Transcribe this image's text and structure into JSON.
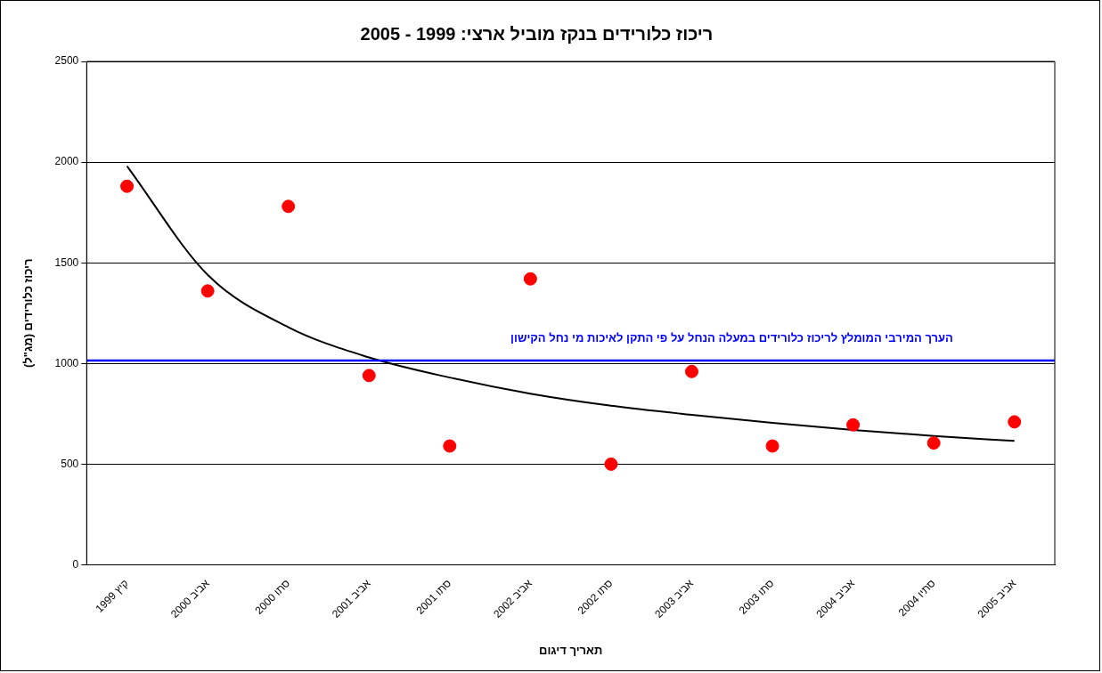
{
  "chart_data": {
    "type": "scatter",
    "title": "ריכוז כלורידים בנקז מוביל ארצי: 1999 - 2005",
    "xlabel": "תאריך דיגום",
    "ylabel": "ריכוז כלורידים (מג\"ל)",
    "categories": [
      "קיץ 1999",
      "אביב 2000",
      "סתו 2000",
      "אביב 2001",
      "סתו 2001",
      "אביב 2002",
      "סתו 2002",
      "אביב 2003",
      "סתו 2003",
      "אביב 2004",
      "סתיו 2004",
      "אביב 2005"
    ],
    "series": [
      {
        "color": "#ff0000",
        "marker": "circle",
        "values": [
          1880,
          1360,
          1780,
          940,
          590,
          1420,
          500,
          960,
          590,
          695,
          605,
          710
        ]
      },
      {
        "type": "line",
        "color": "#000000",
        "marker": "none",
        "line_style": "solid",
        "values": [
          1980,
          1440,
          1180,
          1030,
          930,
          850,
          790,
          745,
          705,
          670,
          640,
          615
        ]
      }
    ],
    "ylim": [
      0,
      2500
    ],
    "yticks": [
      0,
      500,
      1000,
      1500,
      2000,
      2500
    ],
    "grid": "y",
    "legend": false,
    "ref_lines": [
      {
        "axis": "y",
        "value": 1015,
        "label": "הערך המירבי המומלץ לריכוז כלורידים במעלה הנחל על פי התקן לאיכות מי נחל הקישון",
        "color": "#0000ff",
        "line_style": "solid"
      }
    ]
  }
}
